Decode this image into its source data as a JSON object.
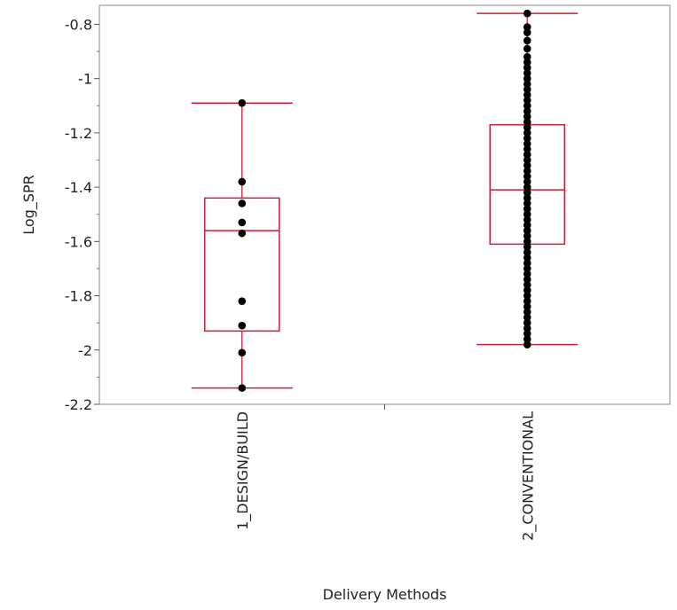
{
  "chart_data": {
    "type": "box",
    "xlabel": "Delivery Methods",
    "ylabel": "Log_SPR",
    "ylim": [
      -2.2,
      -0.73
    ],
    "yticks": [
      -0.8,
      -1,
      -1.2,
      -1.4,
      -1.6,
      -1.8,
      -2,
      -2.2
    ],
    "ytick_labels": [
      "-0.8",
      "-1",
      "-1.2",
      "-1.4",
      "-1.6",
      "-1.8",
      "-2",
      "-2.2"
    ],
    "grid": false,
    "box_color": "#c8203a",
    "point_color": "#000000",
    "categories": [
      "1_DESIGN/BUILD",
      "2_CONVENTIONAL"
    ],
    "boxes": [
      {
        "category": "1_DESIGN/BUILD",
        "whisker_low": -2.14,
        "q1": -1.93,
        "median": -1.56,
        "q3": -1.44,
        "whisker_high": -1.09,
        "points": [
          -1.09,
          -1.38,
          -1.46,
          -1.53,
          -1.57,
          -1.82,
          -1.91,
          -2.01,
          -2.14
        ]
      },
      {
        "category": "2_CONVENTIONAL",
        "whisker_low": -1.98,
        "q1": -1.61,
        "median": -1.41,
        "q3": -1.17,
        "whisker_high": -0.76,
        "points": [
          -0.76,
          -0.81,
          -0.83,
          -0.86,
          -0.89,
          -0.92,
          -0.94,
          -0.96,
          -0.98,
          -1.0,
          -1.02,
          -1.04,
          -1.06,
          -1.08,
          -1.1,
          -1.12,
          -1.14,
          -1.16,
          -1.18,
          -1.2,
          -1.22,
          -1.24,
          -1.26,
          -1.28,
          -1.3,
          -1.32,
          -1.34,
          -1.36,
          -1.38,
          -1.4,
          -1.42,
          -1.44,
          -1.46,
          -1.48,
          -1.5,
          -1.52,
          -1.54,
          -1.56,
          -1.58,
          -1.6,
          -1.62,
          -1.64,
          -1.66,
          -1.68,
          -1.7,
          -1.72,
          -1.74,
          -1.76,
          -1.78,
          -1.8,
          -1.82,
          -1.84,
          -1.86,
          -1.88,
          -1.9,
          -1.92,
          -1.94,
          -1.96,
          -1.98
        ]
      }
    ]
  }
}
